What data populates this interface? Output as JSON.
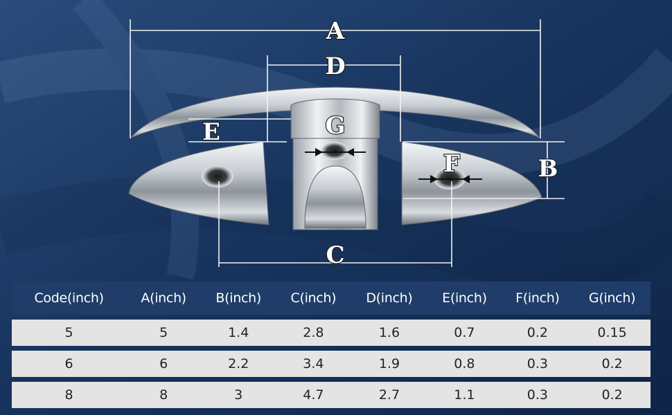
{
  "diagram": {
    "labels": {
      "A": "A",
      "B": "B",
      "C": "C",
      "D": "D",
      "E": "E",
      "F": "F",
      "G": "G"
    }
  },
  "table": {
    "headers": [
      "Code(inch)",
      "A(inch)",
      "B(inch)",
      "C(inch)",
      "D(inch)",
      "E(inch)",
      "F(inch)",
      "G(inch)"
    ],
    "rows": [
      [
        "5",
        "5",
        "1.4",
        "2.8",
        "1.6",
        "0.7",
        "0.2",
        "0.15"
      ],
      [
        "6",
        "6",
        "2.2",
        "3.4",
        "1.9",
        "0.8",
        "0.3",
        "0.2"
      ],
      [
        "8",
        "8",
        "3",
        "4.7",
        "2.7",
        "1.1",
        "0.3",
        "0.2"
      ]
    ]
  },
  "colors": {
    "background": "#16325a",
    "header_row": "#1f3d68",
    "body_row": "#e4e4e4"
  }
}
